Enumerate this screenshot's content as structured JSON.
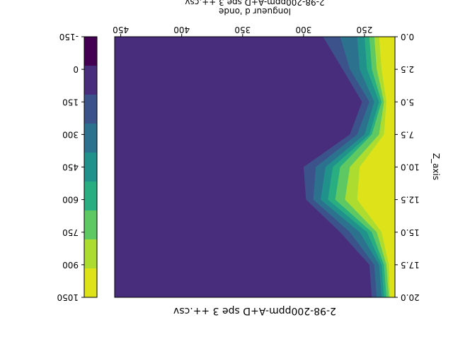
{
  "chart_data": {
    "type": "heatmap",
    "orientation": "rotated-180",
    "title": "2-98-200ppm-A+D spe 3 ++.csv",
    "top_title": "2-98-200ppm-A+D spe 3 ++.csv",
    "xlabel": "longueur d 'onde",
    "ylabel": "Z_axis",
    "x_ticks": [
      "450",
      "400",
      "350",
      "300",
      "250"
    ],
    "x_tick_values": [
      450,
      400,
      350,
      300,
      250
    ],
    "xlim": [
      225,
      455
    ],
    "y_ticks": [
      "0.0",
      "2.5",
      "5.0",
      "7.5",
      "10.0",
      "12.5",
      "15.0",
      "17.5",
      "20.0"
    ],
    "y_tick_values": [
      0,
      2.5,
      5,
      7.5,
      10,
      12.5,
      15,
      17.5,
      20
    ],
    "ylim": [
      0,
      20
    ],
    "colorbar": {
      "ticks": [
        "-150",
        "0",
        "150",
        "300",
        "450",
        "600",
        "750",
        "900",
        "1050"
      ],
      "levels": [
        -150,
        0,
        150,
        300,
        450,
        600,
        750,
        900,
        1050
      ],
      "colors": [
        "#440154",
        "#472d7b",
        "#3b528b",
        "#2c728e",
        "#21918c",
        "#28ae80",
        "#5ec962",
        "#addc30",
        "#dde318"
      ]
    },
    "background_level_color": "#472d7b",
    "contour_summary": [
      {
        "feature": "high-intensity band near 225-250 nm",
        "z_range": [
          0,
          20
        ],
        "level": ">=900"
      },
      {
        "feature": "lobe",
        "z_center": 2.5,
        "x_extent": 265,
        "level": "150-750"
      },
      {
        "feature": "lobe",
        "z_center": 12.5,
        "x_extent": 295,
        "level": "150-750"
      },
      {
        "feature": "lobe",
        "z_center": 19.5,
        "x_extent": 240,
        "level": "150-600"
      }
    ]
  }
}
